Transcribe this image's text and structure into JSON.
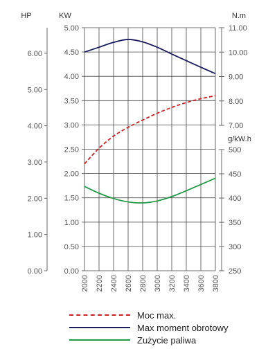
{
  "chart_data": {
    "type": "line",
    "x": [
      2000,
      2200,
      2400,
      2600,
      2800,
      3000,
      3200,
      3400,
      3600,
      3800
    ],
    "xlim": [
      2000,
      3800
    ],
    "axes": {
      "hp": {
        "title": "HP",
        "ticks": [
          "0.00",
          "1.00",
          "2.00",
          "3.00",
          "4.00",
          "5.00",
          "6.00"
        ],
        "ylim": [
          0,
          6.705
        ]
      },
      "kw": {
        "title": "KW",
        "ticks": [
          "0.00",
          "0.50",
          "1.00",
          "1.50",
          "2.00",
          "2.50",
          "3.00",
          "3.50",
          "4.00",
          "4.50",
          "5.00"
        ],
        "ylim": [
          0,
          5
        ]
      },
      "nm": {
        "title": "N.m",
        "ticks": [
          "7.00",
          "8.00",
          "9.00",
          "10.00",
          "11.00"
        ],
        "ylim": [
          7,
          11
        ]
      },
      "gkwh": {
        "title": "g/kW.h",
        "ticks": [
          "250",
          "300",
          "350",
          "400",
          "450",
          "500"
        ],
        "ylim": [
          250,
          500
        ]
      }
    },
    "series": [
      {
        "name": "Moc max.",
        "axis": "kw",
        "color": "#cc2222",
        "dash": "dashed",
        "values": [
          2.2,
          2.52,
          2.77,
          2.95,
          3.1,
          3.24,
          3.36,
          3.46,
          3.54,
          3.6
        ]
      },
      {
        "name": "Max moment obrotowy",
        "axis": "nm",
        "color": "#1a1a5e",
        "dash": "solid",
        "values": [
          10.0,
          10.2,
          10.4,
          10.52,
          10.42,
          10.2,
          9.92,
          9.65,
          9.38,
          9.12
        ]
      },
      {
        "name": "Zużycie paliwa",
        "axis": "gkwh",
        "color": "#229944",
        "dash": "solid",
        "values": [
          424,
          410,
          399,
          392,
          390,
          394,
          403,
          415,
          428,
          441
        ]
      }
    ],
    "grid": true,
    "legend_position": "bottom"
  }
}
